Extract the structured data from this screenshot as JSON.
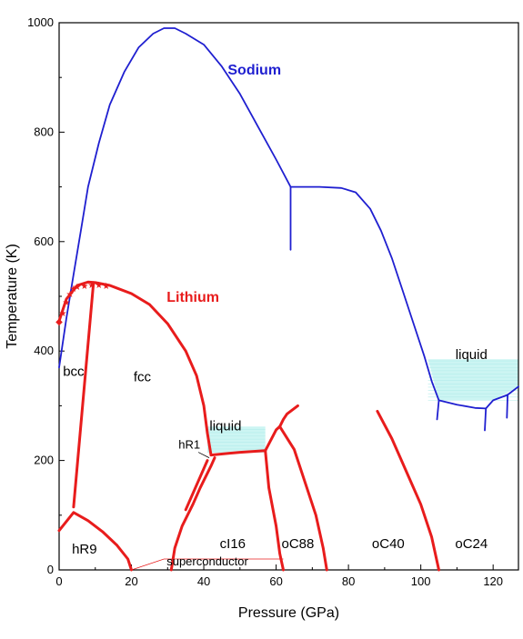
{
  "chart_data": {
    "type": "line",
    "xlabel": "Pressure (GPa)",
    "ylabel": "Temperature (K)",
    "xlim": [
      0,
      127
    ],
    "ylim": [
      0,
      1000
    ],
    "x_ticks": [
      0,
      20,
      40,
      60,
      80,
      100,
      120
    ],
    "y_ticks": [
      0,
      200,
      400,
      600,
      800,
      1000
    ],
    "colors": {
      "sodium": "#1f1fd0",
      "lithium": "#e81c1c",
      "liquid_fill": "#ccf5f3"
    },
    "series": [
      {
        "name": "Sodium",
        "color": "#1f1fd0",
        "lines": [
          [
            [
              0,
              370
            ],
            [
              2,
              460
            ],
            [
              4,
              540
            ],
            [
              6,
              620
            ],
            [
              8,
              700
            ],
            [
              11,
              780
            ],
            [
              14,
              850
            ],
            [
              18,
              910
            ],
            [
              22,
              955
            ],
            [
              26,
              980
            ],
            [
              29,
              990
            ],
            [
              32,
              990
            ],
            [
              35,
              980
            ],
            [
              40,
              960
            ],
            [
              45,
              920
            ],
            [
              50,
              870
            ],
            [
              55,
              810
            ],
            [
              60,
              750
            ],
            [
              64,
              700
            ],
            [
              65,
              700
            ],
            [
              72,
              700
            ],
            [
              78,
              698
            ],
            [
              82,
              690
            ],
            [
              86,
              660
            ],
            [
              89,
              620
            ],
            [
              92,
              570
            ],
            [
              95,
              510
            ],
            [
              98,
              450
            ],
            [
              101,
              390
            ],
            [
              103,
              345
            ],
            [
              105,
              310
            ]
          ],
          [
            [
              64,
              700
            ],
            [
              64,
              585
            ]
          ],
          [
            [
              105,
              310
            ],
            [
              110,
              302
            ],
            [
              115,
              296
            ],
            [
              118,
              295
            ],
            [
              120,
              310
            ],
            [
              124,
              320
            ],
            [
              127,
              335
            ]
          ],
          [
            [
              105,
              310
            ],
            [
              104.5,
              275
            ]
          ],
          [
            [
              118,
              295
            ],
            [
              117.7,
              255
            ]
          ],
          [
            [
              124,
              320
            ],
            [
              123.8,
              278
            ]
          ]
        ]
      },
      {
        "name": "Lithium",
        "color": "#e81c1c",
        "lines": [
          [
            [
              0,
              455
            ],
            [
              2,
              495
            ],
            [
              5,
              520
            ],
            [
              8,
              526
            ],
            [
              10,
              525
            ],
            [
              14,
              520
            ],
            [
              20,
              505
            ],
            [
              25,
              485
            ],
            [
              30,
              450
            ],
            [
              35,
              400
            ],
            [
              38,
              355
            ],
            [
              40,
              300
            ],
            [
              41,
              250
            ],
            [
              42,
              210
            ]
          ],
          [
            [
              9.5,
              525
            ],
            [
              4,
              115
            ]
          ],
          [
            [
              0,
              72
            ],
            [
              4,
              105
            ],
            [
              8,
              90
            ],
            [
              12,
              70
            ],
            [
              16,
              45
            ],
            [
              19,
              20
            ],
            [
              20,
              0
            ]
          ],
          [
            [
              31,
              0
            ],
            [
              32,
              40
            ],
            [
              34,
              80
            ],
            [
              37,
              120
            ],
            [
              39,
              150
            ],
            [
              42,
              190
            ],
            [
              43,
              205
            ]
          ],
          [
            [
              35,
              110
            ],
            [
              41,
              200
            ]
          ],
          [
            [
              42,
              210
            ],
            [
              50,
              215
            ],
            [
              57,
              218
            ]
          ],
          [
            [
              57,
              218
            ],
            [
              60,
              256
            ],
            [
              61,
              262
            ]
          ],
          [
            [
              61,
              262
            ],
            [
              62,
              275
            ],
            [
              63,
              285
            ],
            [
              66,
              300
            ]
          ],
          [
            [
              57,
              218
            ],
            [
              58,
              150
            ],
            [
              60,
              80
            ],
            [
              61,
              30
            ],
            [
              62,
              0
            ]
          ],
          [
            [
              61,
              262
            ],
            [
              65,
              220
            ],
            [
              68,
              160
            ],
            [
              71,
              100
            ],
            [
              73,
              40
            ],
            [
              74,
              0
            ]
          ],
          [
            [
              88,
              290
            ],
            [
              92,
              240
            ],
            [
              96,
              180
            ],
            [
              100,
              120
            ],
            [
              103,
              60
            ],
            [
              105,
              0
            ]
          ]
        ],
        "markers": [
          [
            0,
            455
          ],
          [
            1,
            470
          ],
          [
            2,
            490
          ],
          [
            3,
            505
          ],
          [
            4,
            515
          ],
          [
            5,
            518
          ],
          [
            7,
            520
          ],
          [
            9,
            522
          ],
          [
            11,
            522
          ],
          [
            13,
            520
          ]
        ]
      }
    ],
    "superconductor_line": [
      [
        20,
        0
      ],
      [
        29,
        20
      ],
      [
        62,
        20
      ]
    ],
    "liquid_regions": [
      {
        "label": "liquid",
        "label_at": [
          46,
          255
        ],
        "bounds": [
          [
            41,
            215
          ],
          [
            41,
            262
          ],
          [
            57,
            262
          ],
          [
            57,
            218
          ]
        ]
      },
      {
        "label": "liquid",
        "label_at": [
          114,
          385
        ],
        "bounds": [
          [
            102,
            385
          ],
          [
            127,
            385
          ],
          [
            127,
            335
          ],
          [
            120,
            310
          ],
          [
            105,
            310
          ]
        ]
      }
    ],
    "annotations": [
      {
        "text": "Sodium",
        "at": [
          54,
          905
        ],
        "style": "series-title",
        "color": "#1f1fd0"
      },
      {
        "text": "Lithium",
        "at": [
          37,
          490
        ],
        "style": "series-title",
        "color": "#e81c1c"
      },
      {
        "text": "bcc",
        "at": [
          4,
          355
        ],
        "style": "phase"
      },
      {
        "text": "fcc",
        "at": [
          23,
          345
        ],
        "style": "phase"
      },
      {
        "text": "liquid",
        "at": [
          46,
          255
        ],
        "style": "phase"
      },
      {
        "text": "hR1",
        "at": [
          36,
          222
        ],
        "style": "small"
      },
      {
        "text": "hR9",
        "at": [
          7,
          30
        ],
        "style": "phase"
      },
      {
        "text": "cI16",
        "at": [
          48,
          40
        ],
        "style": "phase"
      },
      {
        "text": "superconductor",
        "at": [
          41,
          8
        ],
        "style": "small"
      },
      {
        "text": "oC88",
        "at": [
          66,
          40
        ],
        "style": "phase"
      },
      {
        "text": "oC40",
        "at": [
          91,
          40
        ],
        "style": "phase"
      },
      {
        "text": "oC24",
        "at": [
          114,
          40
        ],
        "style": "phase"
      },
      {
        "text": "liquid",
        "at": [
          114,
          385
        ],
        "style": "phase"
      }
    ]
  }
}
